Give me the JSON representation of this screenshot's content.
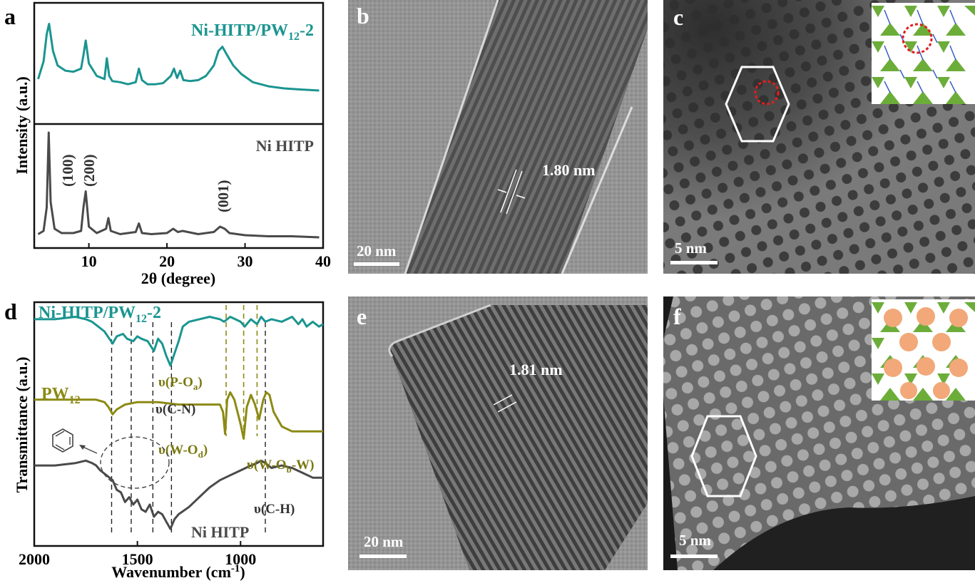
{
  "colors": {
    "teal": "#1a9590",
    "gray": "#4a4a4a",
    "olive": "#8c8a14",
    "green": "#6cad3a",
    "orange": "#f2a878",
    "blue": "#3a5cc8",
    "red": "#e21e1e"
  },
  "panels": {
    "a": "a",
    "b": "b",
    "c": "c",
    "d": "d",
    "e": "e",
    "f": "f"
  },
  "tem": {
    "b": {
      "scale": "20 nm",
      "spacing": "1.80 nm"
    },
    "c": {
      "scale": "5 nm"
    },
    "e": {
      "scale": "20 nm",
      "spacing": "1.81 nm"
    },
    "f": {
      "scale": "5 nm"
    }
  },
  "chart_data": [
    {
      "panel": "a",
      "type": "line",
      "title": "",
      "xlabel": "2θ (degree)",
      "ylabel": "Intensity (a.u.)",
      "xlim": [
        3,
        40
      ],
      "xticks": [
        10,
        20,
        30,
        40
      ],
      "subplots": [
        {
          "position": "top",
          "series": [
            {
              "name": "Ni-HITP/PW₁₂-2",
              "x": [
                3.5,
                4.2,
                4.6,
                4.9,
                5.4,
                6,
                7,
                8,
                9,
                9.3,
                9.6,
                10,
                11,
                12,
                12.3,
                12.6,
                13,
                14,
                15,
                16,
                16.4,
                16.8,
                17.5,
                18.5,
                19.5,
                20.5,
                20.9,
                21.3,
                21.7,
                22.1,
                23,
                24,
                25,
                26,
                26.6,
                27.1,
                27.7,
                28.5,
                29.5,
                31,
                33,
                35,
                37,
                39.5
              ],
              "y": [
                0.35,
                0.52,
                0.78,
                0.88,
                0.62,
                0.48,
                0.43,
                0.42,
                0.45,
                0.58,
                0.72,
                0.5,
                0.38,
                0.35,
                0.55,
                0.38,
                0.33,
                0.32,
                0.3,
                0.32,
                0.45,
                0.34,
                0.3,
                0.3,
                0.31,
                0.38,
                0.45,
                0.36,
                0.43,
                0.34,
                0.33,
                0.34,
                0.38,
                0.48,
                0.62,
                0.66,
                0.58,
                0.48,
                0.4,
                0.32,
                0.28,
                0.26,
                0.25,
                0.24
              ]
            }
          ]
        },
        {
          "position": "bottom",
          "series": [
            {
              "name": "Ni HITP",
              "x": [
                3.5,
                4.2,
                4.6,
                4.85,
                5.1,
                5.6,
                6.5,
                8,
                9,
                9.3,
                9.6,
                10,
                11,
                12.2,
                12.5,
                12.8,
                14,
                16,
                16.4,
                16.8,
                18,
                20,
                20.8,
                21.4,
                22,
                24,
                26,
                26.8,
                27.4,
                28,
                30,
                33,
                36,
                39.5
              ],
              "y": [
                0.05,
                0.08,
                0.3,
                1.0,
                0.35,
                0.1,
                0.06,
                0.06,
                0.08,
                0.3,
                0.45,
                0.12,
                0.06,
                0.1,
                0.2,
                0.08,
                0.05,
                0.07,
                0.15,
                0.06,
                0.05,
                0.06,
                0.1,
                0.07,
                0.08,
                0.05,
                0.07,
                0.12,
                0.1,
                0.06,
                0.04,
                0.03,
                0.03,
                0.02
              ]
            }
          ]
        }
      ],
      "annotations": [
        "(100)",
        "(200)",
        "(001)"
      ]
    },
    {
      "panel": "d",
      "type": "line",
      "title": "",
      "xlabel": "Wavenumber (cm⁻¹)",
      "ylabel": "Transmittance (a.u.)",
      "xlim": [
        2000,
        600
      ],
      "xticks": [
        2000,
        1500,
        1000
      ],
      "series": [
        {
          "name": "Ni-HITP/PW₁₂-2",
          "x": [
            2000,
            1900,
            1800,
            1750,
            1720,
            1690,
            1660,
            1620,
            1600,
            1570,
            1550,
            1520,
            1500,
            1480,
            1450,
            1420,
            1400,
            1380,
            1360,
            1340,
            1320,
            1300,
            1280,
            1250,
            1200,
            1150,
            1100,
            1080,
            1050,
            1000,
            980,
            950,
            920,
            900,
            880,
            850,
            800,
            750,
            720,
            700,
            680,
            650,
            620,
            600
          ],
          "y": [
            0.93,
            0.93,
            0.94,
            0.93,
            0.92,
            0.9,
            0.88,
            0.83,
            0.86,
            0.87,
            0.85,
            0.84,
            0.86,
            0.85,
            0.84,
            0.8,
            0.85,
            0.83,
            0.78,
            0.74,
            0.79,
            0.84,
            0.9,
            0.92,
            0.93,
            0.94,
            0.93,
            0.92,
            0.94,
            0.92,
            0.9,
            0.93,
            0.91,
            0.94,
            0.92,
            0.93,
            0.92,
            0.94,
            0.91,
            0.93,
            0.9,
            0.92,
            0.9,
            0.91
          ]
        },
        {
          "name": "PW₁₂",
          "x": [
            2000,
            1900,
            1800,
            1700,
            1660,
            1640,
            1620,
            1600,
            1560,
            1500,
            1400,
            1300,
            1200,
            1150,
            1100,
            1085,
            1075,
            1065,
            1050,
            1030,
            1000,
            985,
            970,
            950,
            930,
            910,
            890,
            875,
            860,
            840,
            820,
            800,
            750,
            700,
            650,
            600
          ],
          "y": [
            0.6,
            0.6,
            0.6,
            0.6,
            0.59,
            0.57,
            0.54,
            0.56,
            0.58,
            0.59,
            0.59,
            0.58,
            0.58,
            0.58,
            0.58,
            0.55,
            0.46,
            0.6,
            0.63,
            0.6,
            0.5,
            0.44,
            0.57,
            0.62,
            0.58,
            0.52,
            0.6,
            0.63,
            0.62,
            0.55,
            0.52,
            0.49,
            0.47,
            0.47,
            0.47,
            0.47
          ]
        },
        {
          "name": "Ni HITP",
          "x": [
            2000,
            1900,
            1800,
            1750,
            1720,
            1700,
            1680,
            1650,
            1620,
            1600,
            1580,
            1560,
            1540,
            1520,
            1500,
            1480,
            1460,
            1440,
            1420,
            1400,
            1380,
            1360,
            1340,
            1320,
            1300,
            1250,
            1200,
            1150,
            1100,
            1050,
            1000,
            950,
            920,
            900,
            880,
            850,
            800,
            750,
            700,
            650,
            600
          ],
          "y": [
            0.33,
            0.33,
            0.34,
            0.35,
            0.34,
            0.33,
            0.31,
            0.29,
            0.27,
            0.23,
            0.22,
            0.18,
            0.2,
            0.17,
            0.19,
            0.15,
            0.14,
            0.17,
            0.12,
            0.14,
            0.13,
            0.1,
            0.07,
            0.11,
            0.13,
            0.16,
            0.2,
            0.24,
            0.27,
            0.29,
            0.31,
            0.33,
            0.34,
            0.35,
            0.34,
            0.32,
            0.33,
            0.32,
            0.3,
            0.28,
            0.28
          ]
        }
      ],
      "markers": {
        "black_dashed": [
          1625,
          1530,
          1425,
          1335,
          880
        ],
        "olive_dashed": [
          1070,
          985,
          920
        ]
      },
      "annotations": [
        "υ(P-Oa)",
        "υ(C-N)",
        "υ(W-Od)",
        "υ(W-Ob-W)",
        "υ(C-H)"
      ]
    }
  ]
}
